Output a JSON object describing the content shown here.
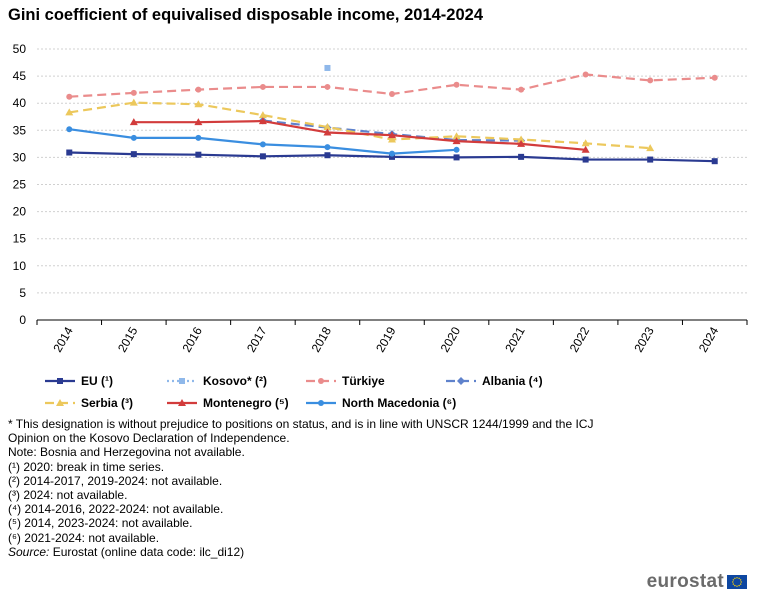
{
  "chart_data": {
    "type": "line",
    "title": "Gini coefficient of equivalised disposable income, 2014-2024",
    "xlabel": "",
    "ylabel": "",
    "ylim": [
      0,
      50
    ],
    "yticks": [
      0,
      5,
      10,
      15,
      20,
      25,
      30,
      35,
      40,
      45,
      50
    ],
    "x": [
      "2014",
      "2015",
      "2016",
      "2017",
      "2018",
      "2019",
      "2020",
      "2021",
      "2022",
      "2023",
      "2024"
    ],
    "grid": "horizontal",
    "legend_position": "bottom",
    "series": [
      {
        "name": "EU (¹)",
        "color": "#2a3a91",
        "dash": "solid",
        "marker": "square",
        "values": [
          30.9,
          30.6,
          30.5,
          30.2,
          30.4,
          30.1,
          30.0,
          30.1,
          29.6,
          29.6,
          29.3
        ]
      },
      {
        "name": "Kosovo* (²)",
        "color": "#8fb8ea",
        "dash": "dotted",
        "marker": "square",
        "values": [
          null,
          null,
          null,
          null,
          46.5,
          null,
          null,
          null,
          null,
          null,
          null
        ]
      },
      {
        "name": "Türkiye",
        "color": "#ea8c8c",
        "dash": "dashed",
        "marker": "circle",
        "values": [
          41.2,
          41.9,
          42.5,
          43.0,
          43.0,
          41.7,
          43.4,
          42.5,
          45.3,
          44.2,
          44.7
        ]
      },
      {
        "name": "Albania (⁴)",
        "color": "#5f82cc",
        "dash": "dashed",
        "marker": "diamond",
        "values": [
          null,
          null,
          null,
          36.8,
          35.5,
          34.3,
          33.2,
          33.1,
          null,
          null,
          null
        ]
      },
      {
        "name": "Serbia (³)",
        "color": "#ecc85c",
        "dash": "dashed",
        "marker": "triangle",
        "values": [
          38.3,
          40.1,
          39.8,
          37.8,
          35.6,
          33.3,
          33.9,
          33.3,
          32.6,
          31.7,
          null
        ]
      },
      {
        "name": "Montenegro (⁵)",
        "color": "#d23c3c",
        "dash": "solid",
        "marker": "triangle",
        "values": [
          null,
          36.5,
          36.5,
          36.7,
          34.6,
          34.1,
          33.0,
          32.5,
          31.4,
          null,
          null
        ]
      },
      {
        "name": "North Macedonia (⁶)",
        "color": "#3a8ee0",
        "dash": "solid",
        "marker": "circle",
        "values": [
          35.2,
          33.6,
          33.6,
          32.4,
          31.9,
          30.7,
          31.4,
          null,
          null,
          null,
          null
        ]
      }
    ]
  },
  "notes": {
    "asterisk_line1": "* This designation is without prejudice to positions on status, and is in line with UNSCR 1244/1999 and the ICJ",
    "asterisk_line2": "Opinion on the Kosovo Declaration of Independence.",
    "note": "Note: Bosnia and Herzegovina  not available.",
    "fn1": "(¹) 2020: break in time series.",
    "fn2": "(²) 2014-2017, 2019-2024: not available.",
    "fn3": "(³) 2024: not available.",
    "fn4": "(⁴) 2014-2016, 2022-2024: not available.",
    "fn5": "(⁵) 2014, 2023-2024: not available.",
    "fn6": "(⁶) 2021-2024: not available.",
    "source_label": "Source:",
    "source_text": " Eurostat (online data code: ilc_di12)"
  },
  "logo": {
    "text": "eurostat",
    "flag_icon": "eu-flag-icon"
  }
}
